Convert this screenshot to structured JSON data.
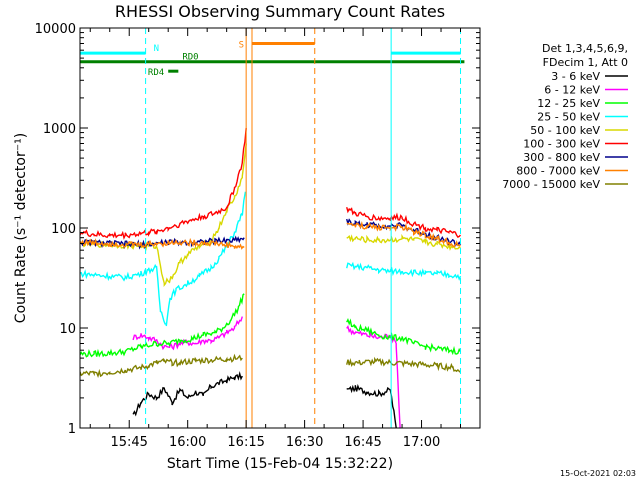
{
  "chart_data": {
    "type": "line",
    "title": "RHESSI Observing Summary Count Rates",
    "xlabel": "Start Time (15-Feb-04 15:32:22)",
    "ylabel": "Count Rate (s⁻¹ detector⁻¹)",
    "xscale": "linear",
    "xunit": "minutes of day (15:32:22 = 932.37)",
    "xlim": [
      932.37,
      1035.0
    ],
    "ylim": [
      1,
      10000
    ],
    "yscale": "log",
    "x_ticks": [
      "15:45",
      "16:00",
      "16:15",
      "16:30",
      "16:45",
      "17:00"
    ],
    "x_tick_values": [
      945,
      960,
      975,
      990,
      1005,
      1020
    ],
    "y_ticks": [
      "1",
      "10",
      "100",
      "1000",
      "10000"
    ],
    "y_tick_values": [
      1,
      10,
      100,
      1000,
      10000
    ],
    "legend_header": [
      "Det 1,3,4,5,6,9,",
      "FDecim 1, Att 0"
    ],
    "footer_date": "15-Oct-2021 02:03",
    "data_gap": [
      975.0,
      1000.8
    ],
    "series": [
      {
        "name": "3 - 6 keV",
        "color": "#000000",
        "points": [
          [
            946,
            1.3
          ],
          [
            948,
            1.8
          ],
          [
            950,
            2.2
          ],
          [
            952,
            2.0
          ],
          [
            954,
            2.5
          ],
          [
            956,
            1.8
          ],
          [
            958,
            2.4
          ],
          [
            960,
            2.0
          ],
          [
            962,
            2.3
          ],
          [
            964,
            2.1
          ],
          [
            966,
            2.6
          ],
          [
            968,
            2.8
          ],
          [
            970,
            3.0
          ],
          [
            972,
            3.2
          ],
          [
            974,
            3.3
          ],
          [
            1000.8,
            2.4
          ],
          [
            1003,
            2.5
          ],
          [
            1006,
            2.3
          ],
          [
            1009,
            2.2
          ],
          [
            1012,
            2.4
          ],
          [
            1013.5,
            1.0
          ]
        ]
      },
      {
        "name": "6 - 12 keV",
        "color": "#ff00ff",
        "points": [
          [
            946,
            8
          ],
          [
            948,
            8.5
          ],
          [
            950,
            8
          ],
          [
            952,
            7.5
          ],
          [
            954,
            6.5
          ],
          [
            956,
            6.5
          ],
          [
            958,
            7
          ],
          [
            960,
            7.2
          ],
          [
            962,
            7
          ],
          [
            964,
            7.5
          ],
          [
            966,
            7.5
          ],
          [
            968,
            8
          ],
          [
            970,
            9
          ],
          [
            972,
            10
          ],
          [
            974,
            13
          ],
          [
            1000.8,
            10
          ],
          [
            1003,
            9
          ],
          [
            1006,
            8.5
          ],
          [
            1009,
            8
          ],
          [
            1012,
            8.5
          ],
          [
            1013.5,
            7
          ],
          [
            1014.5,
            1
          ]
        ]
      },
      {
        "name": "12 - 25 keV",
        "color": "#00ff00",
        "points": [
          [
            932.37,
            5.5
          ],
          [
            936,
            5.5
          ],
          [
            940,
            5.6
          ],
          [
            944,
            5.8
          ],
          [
            948,
            6.5
          ],
          [
            952,
            7.0
          ],
          [
            955,
            7.0
          ],
          [
            958,
            7.5
          ],
          [
            961,
            7.8
          ],
          [
            964,
            8.5
          ],
          [
            967,
            9.0
          ],
          [
            969,
            10
          ],
          [
            971,
            12
          ],
          [
            973,
            16
          ],
          [
            974.5,
            22
          ],
          [
            1000.8,
            12
          ],
          [
            1003,
            10
          ],
          [
            1006,
            9.5
          ],
          [
            1009,
            8.5
          ],
          [
            1012,
            8
          ],
          [
            1015,
            8
          ],
          [
            1018,
            7
          ],
          [
            1021,
            6.5
          ],
          [
            1024,
            6.2
          ],
          [
            1027,
            6.0
          ],
          [
            1030,
            5.8
          ]
        ]
      },
      {
        "name": "25 - 50 keV",
        "color": "#00ffff",
        "points": [
          [
            932.37,
            35
          ],
          [
            936,
            34
          ],
          [
            940,
            33
          ],
          [
            944,
            32
          ],
          [
            948,
            35
          ],
          [
            950,
            38
          ],
          [
            952,
            40
          ],
          [
            953,
            15
          ],
          [
            954.5,
            11
          ],
          [
            955.5,
            20
          ],
          [
            957,
            24
          ],
          [
            960,
            28
          ],
          [
            963,
            33
          ],
          [
            966,
            40
          ],
          [
            968,
            50
          ],
          [
            970,
            65
          ],
          [
            972,
            90
          ],
          [
            974,
            140
          ],
          [
            974.8,
            230
          ],
          [
            1000.8,
            42
          ],
          [
            1003,
            41
          ],
          [
            1006,
            40
          ],
          [
            1009,
            38
          ],
          [
            1012,
            37
          ],
          [
            1015,
            37
          ],
          [
            1018,
            36
          ],
          [
            1021,
            35
          ],
          [
            1024,
            35
          ],
          [
            1027,
            34
          ],
          [
            1030,
            33
          ]
        ]
      },
      {
        "name": "50 - 100 keV",
        "color": "#d8d800",
        "points": [
          [
            932.37,
            70
          ],
          [
            940,
            68
          ],
          [
            948,
            66
          ],
          [
            952,
            66
          ],
          [
            954,
            28
          ],
          [
            956,
            32
          ],
          [
            958,
            45
          ],
          [
            960,
            55
          ],
          [
            963,
            65
          ],
          [
            966,
            75
          ],
          [
            968,
            100
          ],
          [
            970,
            150
          ],
          [
            972,
            200
          ],
          [
            974,
            320
          ],
          [
            975,
            700
          ],
          [
            1000.8,
            80
          ],
          [
            1003,
            78
          ],
          [
            1006,
            76
          ],
          [
            1009,
            75
          ],
          [
            1012,
            76
          ],
          [
            1015,
            78
          ],
          [
            1018,
            76
          ],
          [
            1021,
            72
          ],
          [
            1024,
            69
          ],
          [
            1027,
            66
          ],
          [
            1030,
            63
          ]
        ]
      },
      {
        "name": "100 - 300 keV",
        "color": "#ff0000",
        "points": [
          [
            932.37,
            90
          ],
          [
            936,
            86
          ],
          [
            940,
            84
          ],
          [
            944,
            85
          ],
          [
            948,
            88
          ],
          [
            950,
            90
          ],
          [
            952,
            92
          ],
          [
            955,
            100
          ],
          [
            958,
            110
          ],
          [
            961,
            120
          ],
          [
            964,
            130
          ],
          [
            967,
            140
          ],
          [
            970,
            160
          ],
          [
            972,
            250
          ],
          [
            974,
            450
          ],
          [
            975,
            1000
          ],
          [
            1000.8,
            155
          ],
          [
            1003,
            140
          ],
          [
            1006,
            130
          ],
          [
            1009,
            125
          ],
          [
            1012,
            125
          ],
          [
            1015,
            128
          ],
          [
            1018,
            110
          ],
          [
            1021,
            100
          ],
          [
            1024,
            95
          ],
          [
            1027,
            90
          ],
          [
            1030,
            85
          ]
        ]
      },
      {
        "name": "300 - 800 keV",
        "color": "#00008b",
        "points": [
          [
            932.37,
            72
          ],
          [
            940,
            70
          ],
          [
            948,
            68
          ],
          [
            952,
            70
          ],
          [
            955,
            72
          ],
          [
            958,
            72
          ],
          [
            961,
            72
          ],
          [
            964,
            73
          ],
          [
            967,
            74
          ],
          [
            970,
            75
          ],
          [
            972,
            76
          ],
          [
            974.5,
            80
          ],
          [
            1000.8,
            118
          ],
          [
            1003,
            110
          ],
          [
            1006,
            108
          ],
          [
            1009,
            106
          ],
          [
            1012,
            105
          ],
          [
            1015,
            105
          ],
          [
            1018,
            95
          ],
          [
            1021,
            88
          ],
          [
            1024,
            80
          ],
          [
            1027,
            74
          ],
          [
            1030,
            68
          ]
        ]
      },
      {
        "name": "800 - 7000 keV",
        "color": "#ff8000",
        "points": [
          [
            932.37,
            72
          ],
          [
            940,
            70
          ],
          [
            948,
            68
          ],
          [
            952,
            70
          ],
          [
            955,
            71
          ],
          [
            958,
            72
          ],
          [
            961,
            71
          ],
          [
            964,
            71
          ],
          [
            967,
            70
          ],
          [
            970,
            68
          ],
          [
            972,
            65
          ],
          [
            974.5,
            64
          ],
          [
            1000.8,
            112
          ],
          [
            1003,
            106
          ],
          [
            1006,
            104
          ],
          [
            1009,
            102
          ],
          [
            1012,
            101
          ],
          [
            1015,
            102
          ],
          [
            1018,
            92
          ],
          [
            1021,
            85
          ],
          [
            1024,
            78
          ],
          [
            1027,
            72
          ],
          [
            1030,
            66
          ]
        ]
      },
      {
        "name": "7000 - 15000 keV",
        "color": "#808000",
        "points": [
          [
            932.37,
            3.5
          ],
          [
            936,
            3.5
          ],
          [
            940,
            3.6
          ],
          [
            944,
            3.8
          ],
          [
            948,
            4.0
          ],
          [
            950,
            4.2
          ],
          [
            952,
            4.5
          ],
          [
            954,
            4.6
          ],
          [
            956,
            4.5
          ],
          [
            958,
            4.5
          ],
          [
            962,
            4.7
          ],
          [
            966,
            4.8
          ],
          [
            970,
            4.9
          ],
          [
            974,
            5.0
          ],
          [
            1000.8,
            4.5
          ],
          [
            1004,
            4.5
          ],
          [
            1008,
            4.6
          ],
          [
            1012,
            4.5
          ],
          [
            1016,
            4.4
          ],
          [
            1020,
            4.3
          ],
          [
            1024,
            4.2
          ],
          [
            1028,
            4.0
          ],
          [
            1030,
            3.6
          ]
        ]
      }
    ],
    "flags": [
      {
        "label": "N",
        "color": "#00ffff",
        "segments": [
          [
            932.37,
            949.2
          ],
          [
            1012.2,
            1030
          ]
        ]
      },
      {
        "label": "RD0",
        "color": "#008000",
        "segments": [
          [
            932.37,
            1031
          ]
        ]
      },
      {
        "label": "RD4",
        "color": "#008000",
        "segments": [
          [
            955.0,
            957.6
          ]
        ]
      },
      {
        "label": "S",
        "color": "#ff8000",
        "segments": [
          [
            976.5,
            992.6
          ]
        ]
      }
    ],
    "vlines": [
      {
        "x": 932.37,
        "color": "#00ffff",
        "style": "solid"
      },
      {
        "x": 949.2,
        "color": "#00ffff",
        "style": "dashed"
      },
      {
        "x": 1012.2,
        "color": "#00ffff",
        "style": "solid"
      },
      {
        "x": 1030,
        "color": "#00ffff",
        "style": "dashed"
      },
      {
        "x": 976.5,
        "color": "#ff8000",
        "style": "solid"
      },
      {
        "x": 992.6,
        "color": "#ff8000",
        "style": "dashed"
      },
      {
        "x": 975.0,
        "color": "#ff8000",
        "style": "solid"
      }
    ]
  }
}
